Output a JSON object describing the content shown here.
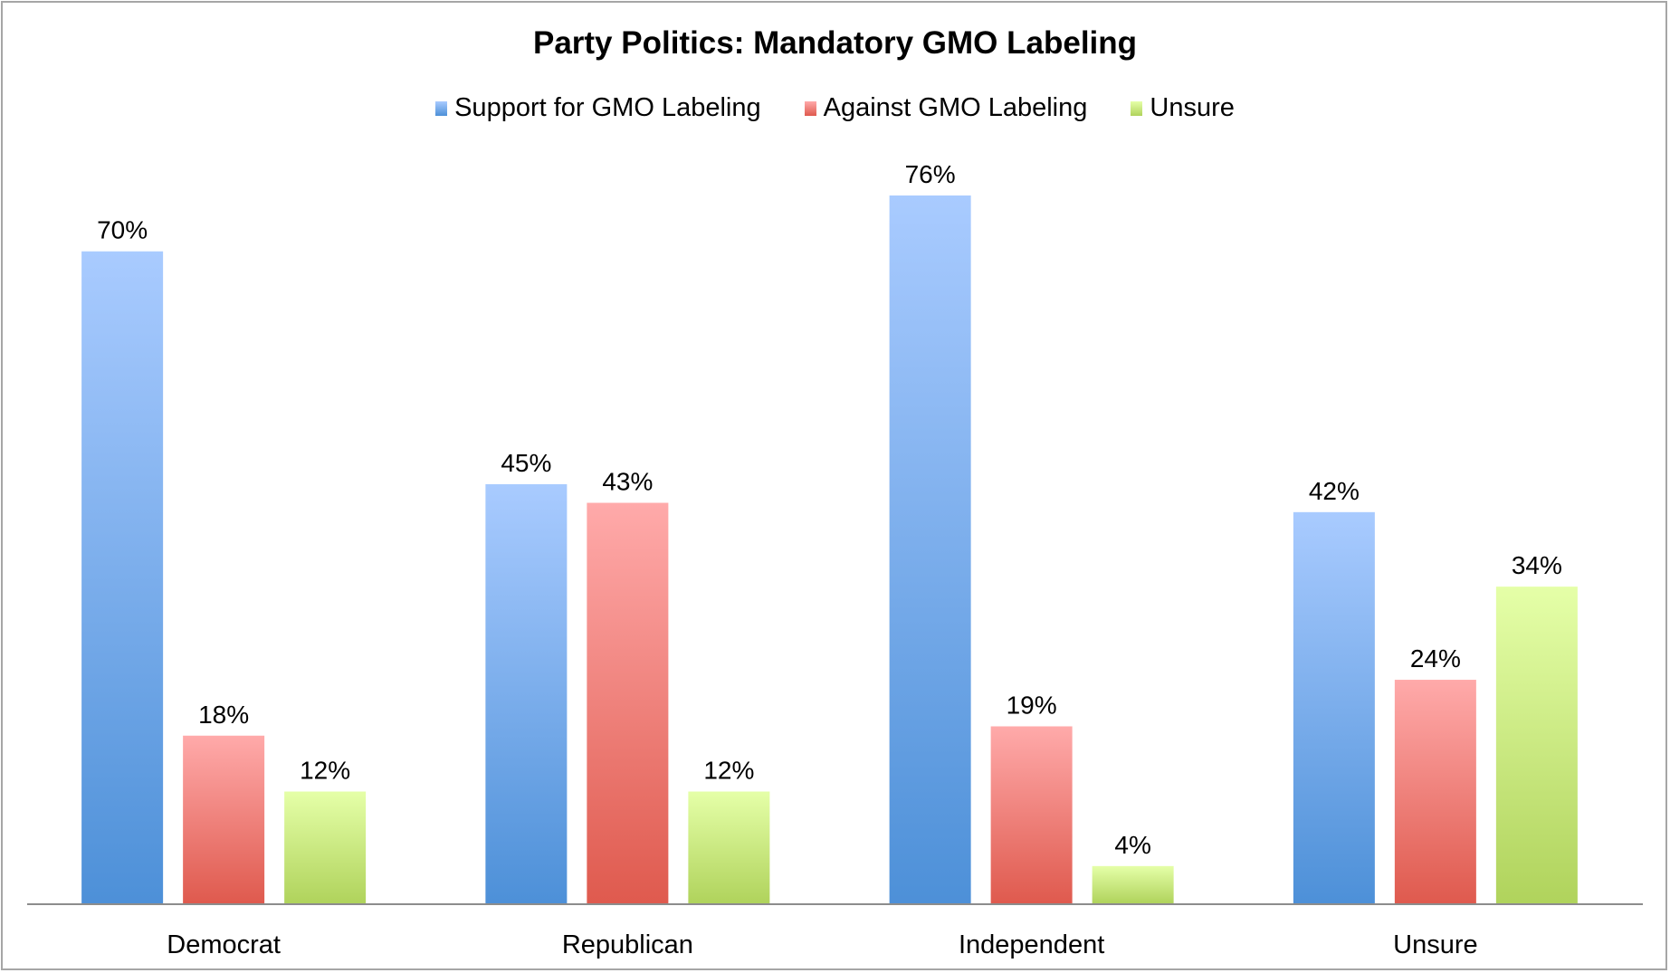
{
  "chart_data": {
    "type": "bar",
    "title": "Party Politics: Mandatory GMO Labeling",
    "xlabel": "",
    "ylabel": "",
    "ylim": [
      0,
      80
    ],
    "grid": false,
    "legend_position": "top",
    "value_suffix": "%",
    "categories": [
      "Democrat",
      "Republican",
      "Independent",
      "Unsure"
    ],
    "series": [
      {
        "name": "Support for GMO Labeling",
        "values": [
          70,
          45,
          76,
          42
        ],
        "color_top": "#a9cbff",
        "color_bottom": "#4d90d8"
      },
      {
        "name": "Against GMO Labeling",
        "values": [
          18,
          43,
          19,
          24
        ],
        "color_top": "#ffaaaa",
        "color_bottom": "#df5a4e"
      },
      {
        "name": "Unsure",
        "values": [
          12,
          12,
          4,
          34
        ],
        "color_top": "#e5ffa8",
        "color_bottom": "#b0d35c"
      }
    ]
  }
}
